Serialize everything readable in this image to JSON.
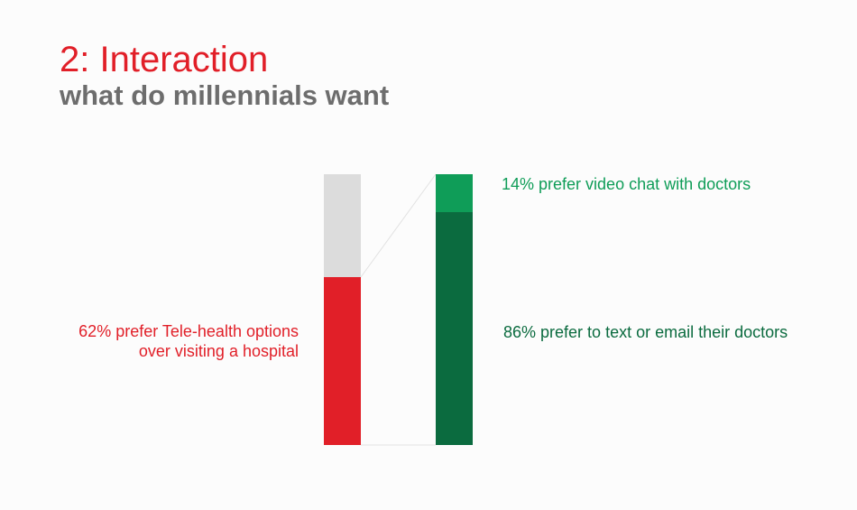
{
  "header": {
    "title": "2: Interaction",
    "subtitle": "what do millennials want"
  },
  "colors": {
    "red": "#e11f28",
    "gray": "#dcdcdc",
    "light_green": "#0f9d58",
    "dark_green": "#0b6b3f",
    "connector": "#e2e2e2"
  },
  "chart_data": {
    "type": "bar",
    "stacks": [
      {
        "name": "",
        "segments": [
          {
            "label": "",
            "value": 38,
            "color": "#dcdcdc"
          },
          {
            "label": "62% prefer Tele-health options over visiting a hospital",
            "value": 62,
            "color": "#e11f28"
          }
        ]
      },
      {
        "name": "",
        "segments": [
          {
            "label": "14% prefer video chat with doctors",
            "value": 14,
            "color": "#0f9d58"
          },
          {
            "label": "86% prefer to text or email their doctors",
            "value": 86,
            "color": "#0b6b3f"
          }
        ]
      }
    ],
    "labels": {
      "left_line1": "62% prefer Tele-health options",
      "left_line2": "over visiting a hospital",
      "right_top": "14% prefer video chat with doctors",
      "right_bottom": "86% prefer to text or email their doctors"
    },
    "ylim": [
      0,
      100
    ]
  }
}
